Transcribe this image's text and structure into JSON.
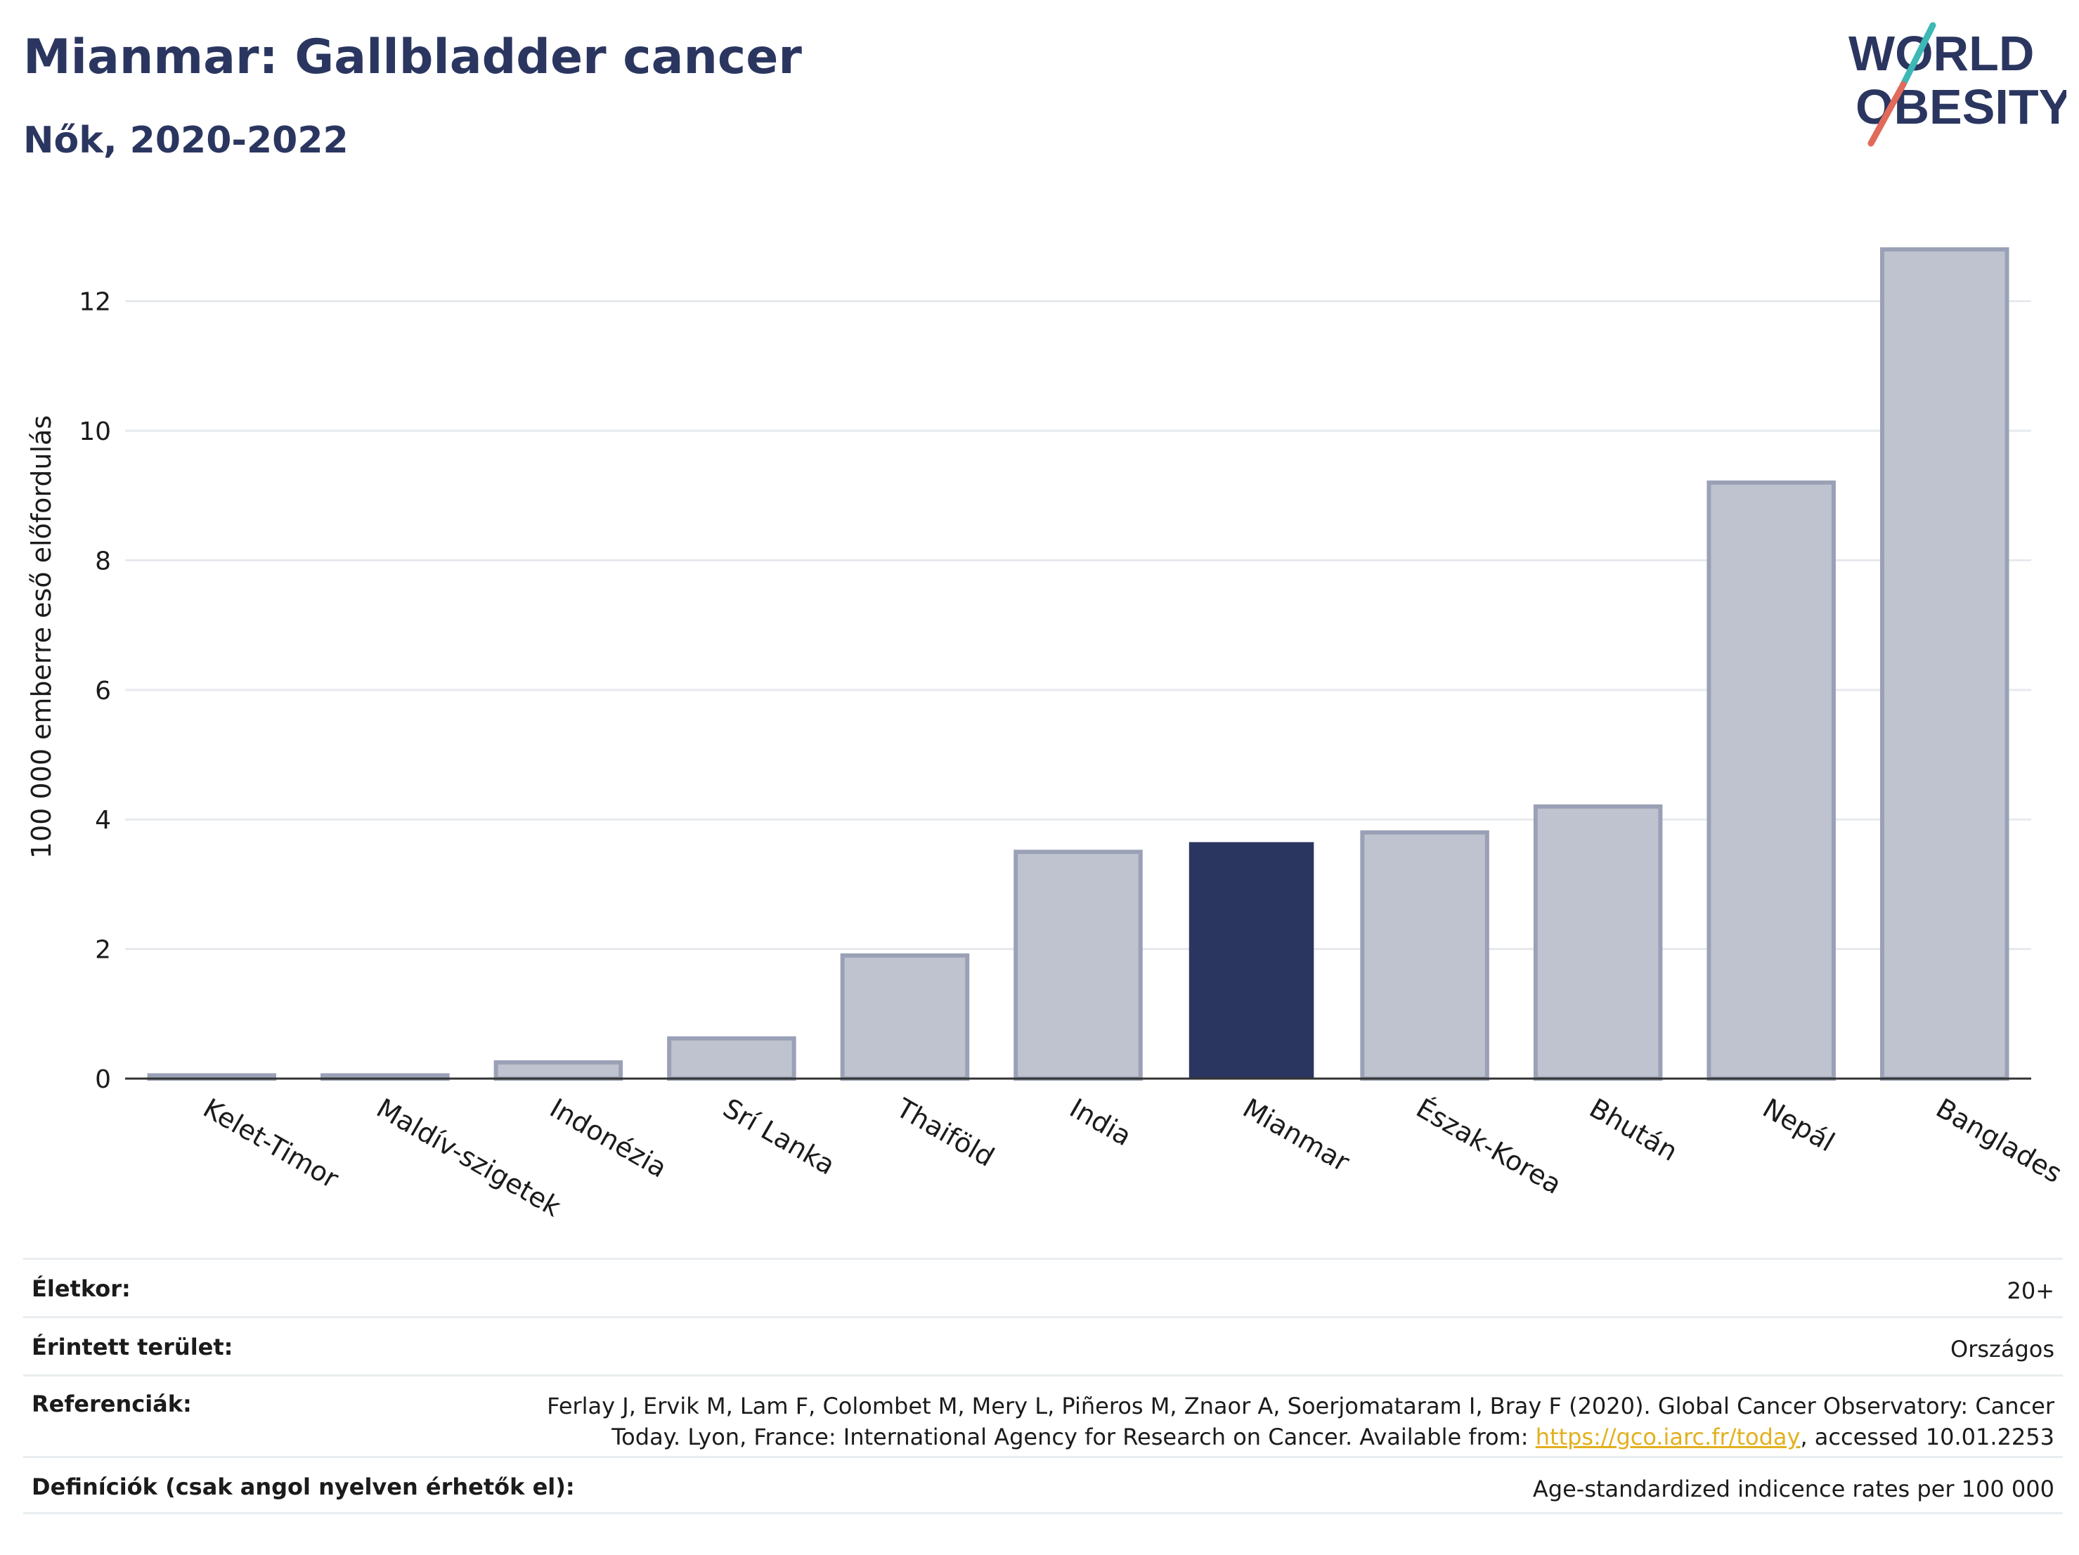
{
  "header": {
    "title": "Mianmar: Gallbladder cancer",
    "subtitle": "Nők, 2020-2022",
    "logo_line1": "WORLD",
    "logo_line2": "OBESITY"
  },
  "chart_data": {
    "type": "bar",
    "title": "Mianmar: Gallbladder cancer",
    "subtitle": "Nők, 2020-2022",
    "ylabel": "100 000 emberre eső előfordulás",
    "xlabel": "",
    "ylim": [
      0,
      13.2
    ],
    "yticks": [
      0,
      2,
      4,
      6,
      8,
      10,
      12
    ],
    "grid": true,
    "categories": [
      "Kelet-Timor",
      "Maldív-szigetek",
      "Indonézia",
      "Srí Lanka",
      "Thaiföld",
      "India",
      "Mianmar",
      "Észak-Korea",
      "Bhután",
      "Nepál",
      "Banglades"
    ],
    "values": [
      0.05,
      0.05,
      0.25,
      0.62,
      1.9,
      3.5,
      3.65,
      3.8,
      4.2,
      9.2,
      12.8
    ],
    "highlight": "Mianmar",
    "colors": {
      "bar": "#bfc3cf",
      "bar_stroke": "#9aa1b6",
      "highlight": "#2b3660"
    }
  },
  "meta": {
    "age_label": "Életkor:",
    "age_value": "20+",
    "area_label": "Érintett terület:",
    "area_value": "Országos",
    "refs_label": "Referenciák:",
    "refs_text_1": "Ferlay J, Ervik M, Lam F, Colombet M, Mery L, Piñeros M, Znaor A, Soerjomataram I, Bray F (2020). Global Cancer Observatory: Cancer",
    "refs_text_2": "Today. Lyon, France: International Agency for Research on Cancer. Available from: ",
    "refs_link": "https://gco.iarc.fr/today",
    "refs_text_3": ", accessed 10.01.2253",
    "defs_label": "Definíciók (csak angol nyelven érhetők el):",
    "defs_value": "Age-standardized indicence rates per 100 000"
  }
}
